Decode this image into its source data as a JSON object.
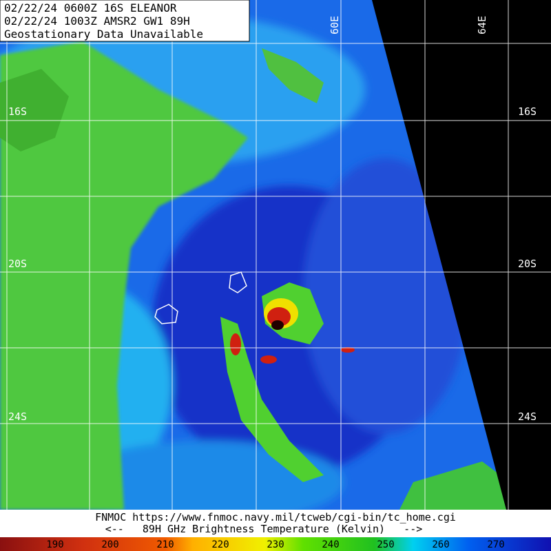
{
  "header": {
    "lines": [
      "02/22/24 0600Z  16S ELEANOR",
      "02/22/24 1003Z  AMSR2 GW1 89H",
      "Geostationary Data Unavailable"
    ]
  },
  "latitudes": [
    "16S",
    "20S",
    "24S"
  ],
  "longitudes": [
    "60E",
    "64E"
  ],
  "footer": {
    "lines": [
      "FNMOC https://www.fnmoc.navy.mil/tcweb/cgi-bin/tc_home.cgi",
      "<--   89H GHz Brightness Temperature (Kelvin)   -->"
    ]
  },
  "colorbar": {
    "labels": [
      "190",
      "200",
      "210",
      "220",
      "230",
      "240",
      "250",
      "260",
      "270"
    ]
  }
}
